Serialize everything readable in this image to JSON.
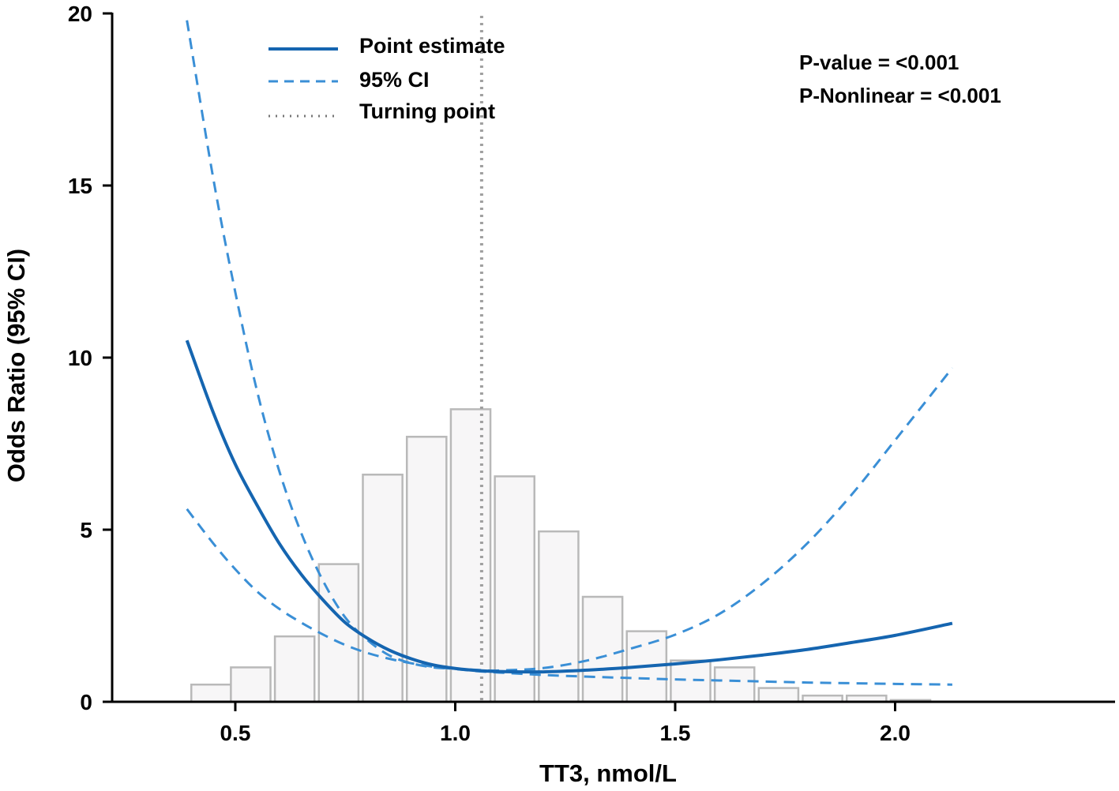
{
  "chart_data": {
    "type": "line",
    "title": "",
    "xlabel": "TT3, nmol/L",
    "ylabel": "Odds Ratio (95% CI)",
    "xlim": [
      0.22,
      2.5
    ],
    "ylim": [
      0,
      20
    ],
    "xticks": [
      0.5,
      1.0,
      1.5,
      2.0
    ],
    "xtick_labels": [
      "0.5",
      "1.0",
      "1.5",
      "2.0"
    ],
    "yticks": [
      0,
      5,
      10,
      15,
      20
    ],
    "ytick_labels": [
      "0",
      "5",
      "10",
      "15",
      "20"
    ],
    "grid": false,
    "legend_position": "top-left",
    "legend": [
      {
        "label": "Point estimate",
        "style": "solid",
        "color": "#1565b0"
      },
      {
        "label": "95% CI",
        "style": "dashed",
        "color": "#3a8fd6"
      },
      {
        "label": "Turning point",
        "style": "dotted",
        "color": "#999999"
      }
    ],
    "annotations": [
      "P-value = <0.001",
      "P-Nonlinear = <0.001"
    ],
    "turning_point_x": 1.06,
    "series": [
      {
        "name": "Point estimate",
        "x": [
          0.39,
          0.45,
          0.5,
          0.55,
          0.6,
          0.65,
          0.7,
          0.75,
          0.8,
          0.85,
          0.9,
          0.95,
          1.0,
          1.06,
          1.1,
          1.2,
          1.3,
          1.4,
          1.5,
          1.6,
          1.7,
          1.8,
          1.9,
          2.0,
          2.13
        ],
        "values": [
          10.5,
          8.4,
          6.9,
          5.7,
          4.6,
          3.7,
          2.95,
          2.3,
          1.85,
          1.5,
          1.25,
          1.07,
          0.97,
          0.9,
          0.88,
          0.87,
          0.92,
          1.0,
          1.1,
          1.22,
          1.36,
          1.52,
          1.72,
          1.93,
          2.28
        ]
      },
      {
        "name": "95% CI upper",
        "x": [
          0.39,
          0.45,
          0.5,
          0.55,
          0.6,
          0.65,
          0.7,
          0.75,
          0.8,
          0.85,
          0.9,
          0.95,
          1.0,
          1.06,
          1.1,
          1.2,
          1.3,
          1.4,
          1.5,
          1.6,
          1.7,
          1.8,
          1.9,
          2.0,
          2.13
        ],
        "values": [
          19.8,
          15.2,
          11.9,
          9.0,
          6.7,
          4.9,
          3.5,
          2.45,
          1.8,
          1.35,
          1.12,
          1.0,
          0.96,
          0.92,
          0.91,
          0.98,
          1.2,
          1.55,
          1.95,
          2.55,
          3.45,
          4.6,
          6.0,
          7.6,
          9.7
        ]
      },
      {
        "name": "95% CI lower",
        "x": [
          0.39,
          0.45,
          0.5,
          0.55,
          0.6,
          0.65,
          0.7,
          0.75,
          0.8,
          0.85,
          0.9,
          0.95,
          1.0,
          1.06,
          1.1,
          1.2,
          1.3,
          1.4,
          1.5,
          1.6,
          1.7,
          1.8,
          1.9,
          2.0,
          2.13
        ],
        "values": [
          5.6,
          4.6,
          3.85,
          3.2,
          2.7,
          2.3,
          1.95,
          1.65,
          1.42,
          1.25,
          1.12,
          1.02,
          0.95,
          0.88,
          0.85,
          0.78,
          0.73,
          0.69,
          0.65,
          0.62,
          0.59,
          0.56,
          0.54,
          0.52,
          0.5
        ]
      }
    ],
    "histogram": {
      "bins": [
        {
          "x0": 0.4,
          "x1": 0.49,
          "value": 0.5
        },
        {
          "x0": 0.49,
          "x1": 0.58,
          "value": 1.0
        },
        {
          "x0": 0.59,
          "x1": 0.68,
          "value": 1.9
        },
        {
          "x0": 0.69,
          "x1": 0.78,
          "value": 4.0
        },
        {
          "x0": 0.79,
          "x1": 0.88,
          "value": 6.6
        },
        {
          "x0": 0.89,
          "x1": 0.98,
          "value": 7.7
        },
        {
          "x0": 0.99,
          "x1": 1.08,
          "value": 8.5
        },
        {
          "x0": 1.09,
          "x1": 1.18,
          "value": 6.55
        },
        {
          "x0": 1.19,
          "x1": 1.28,
          "value": 4.95
        },
        {
          "x0": 1.29,
          "x1": 1.38,
          "value": 3.05
        },
        {
          "x0": 1.39,
          "x1": 1.48,
          "value": 2.05
        },
        {
          "x0": 1.49,
          "x1": 1.58,
          "value": 1.2
        },
        {
          "x0": 1.59,
          "x1": 1.68,
          "value": 1.0
        },
        {
          "x0": 1.69,
          "x1": 1.78,
          "value": 0.4
        },
        {
          "x0": 1.79,
          "x1": 1.88,
          "value": 0.18
        },
        {
          "x0": 1.89,
          "x1": 1.98,
          "value": 0.18
        },
        {
          "x0": 1.99,
          "x1": 2.08,
          "value": 0.05
        }
      ]
    }
  }
}
